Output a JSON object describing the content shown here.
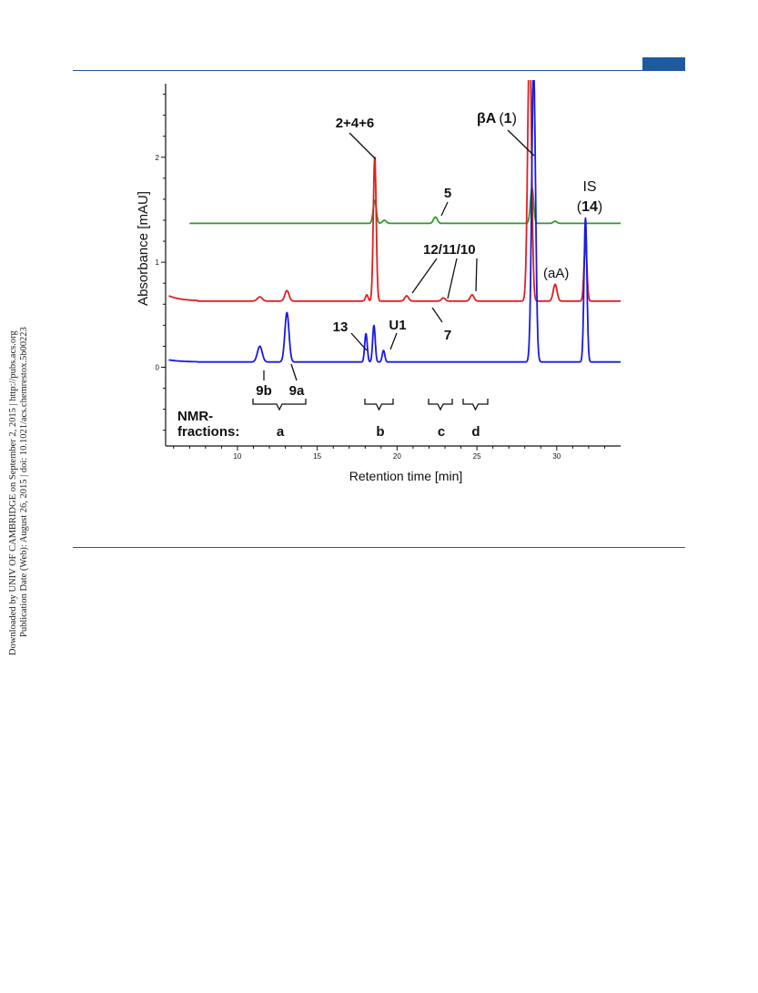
{
  "page": {
    "side_note": [
      "Downloaded by UNIV OF CAMBRIDGE on September 2, 2015 | http://pubs.acs.org",
      "Publication Date (Web): August 26, 2015 | doi: 10.1021/acs.chemrestox.5b00223"
    ],
    "colors": {
      "rule": "#1f5aa0"
    }
  },
  "chart_data": {
    "type": "line",
    "xlabel": "Retention time [min]",
    "ylabel": "Absorbance [mAU]",
    "xlim": [
      5.5,
      34
    ],
    "ylim": [
      -0.75,
      2.7
    ],
    "xticks": [
      10,
      15,
      20,
      25,
      30
    ],
    "yticks": [
      0,
      1,
      2
    ],
    "grid": false,
    "series": [
      {
        "color": "#2e9a2e",
        "baseline": 1.37,
        "peaks": [
          {
            "x": 18.6,
            "h": 0.22,
            "w": 0.1
          },
          {
            "x": 19.2,
            "h": 0.03,
            "w": 0.12
          },
          {
            "x": 22.4,
            "h": 0.06,
            "w": 0.12
          },
          {
            "x": 28.45,
            "h": 0.34,
            "w": 0.1
          },
          {
            "x": 29.9,
            "h": 0.02,
            "w": 0.12
          }
        ]
      },
      {
        "color": "#e02020",
        "baseline": 0.63,
        "peaks": [
          {
            "x": 11.4,
            "h": 0.04,
            "w": 0.15
          },
          {
            "x": 13.1,
            "h": 0.1,
            "w": 0.13
          },
          {
            "x": 18.1,
            "h": 0.06,
            "w": 0.08
          },
          {
            "x": 18.6,
            "h": 1.37,
            "w": 0.09
          },
          {
            "x": 20.6,
            "h": 0.05,
            "w": 0.12
          },
          {
            "x": 22.9,
            "h": 0.03,
            "w": 0.12
          },
          {
            "x": 24.7,
            "h": 0.06,
            "w": 0.12
          },
          {
            "x": 28.3,
            "h": 2.5,
            "w": 0.12
          },
          {
            "x": 29.9,
            "h": 0.16,
            "w": 0.12
          },
          {
            "x": 31.8,
            "h": 0.55,
            "w": 0.09
          }
        ]
      },
      {
        "color": "#1a1ae0",
        "baseline": 0.05,
        "peaks": [
          {
            "x": 11.4,
            "h": 0.15,
            "w": 0.15
          },
          {
            "x": 13.1,
            "h": 0.47,
            "w": 0.13
          },
          {
            "x": 18.05,
            "h": 0.27,
            "w": 0.08
          },
          {
            "x": 18.55,
            "h": 0.35,
            "w": 0.08
          },
          {
            "x": 19.15,
            "h": 0.11,
            "w": 0.08
          },
          {
            "x": 28.55,
            "h": 2.8,
            "w": 0.12
          },
          {
            "x": 31.8,
            "h": 1.37,
            "w": 0.09
          }
        ]
      }
    ],
    "annotations": {
      "p246": "2+4+6",
      "p5": "5",
      "bA_pre": "βA",
      "bA_num": "1",
      "is_pre": "IS",
      "is_num": "14",
      "aA": "(aA)",
      "p12": "12",
      "p11": "11",
      "p10": "10",
      "slash": "/",
      "p7": "7",
      "p13": "13",
      "u1": "U1",
      "p9b": "9b",
      "p9a": "9a",
      "nmr1": "NMR-",
      "nmr2": "fractions:",
      "fa": "a",
      "fb": "b",
      "fc": "c",
      "fd": "d"
    }
  }
}
